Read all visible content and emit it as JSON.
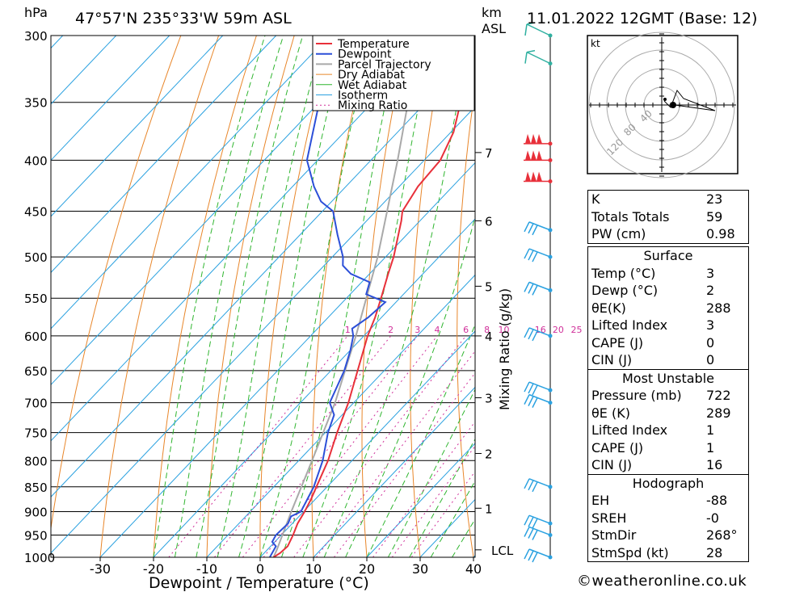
{
  "header": {
    "hpa_unit": "hPa",
    "location": "47°57'N  235°33'W  59m  ASL",
    "km_unit": "km",
    "asl_label": "ASL",
    "datetime": "11.01.2022  12GMT  (Base: 12)"
  },
  "chart_data": {
    "type": "skew-t",
    "xlabel": "Dewpoint / Temperature (°C)",
    "ylabel_left": "hPa",
    "mixing_ratio_axis_label": "Mixing Ratio (g/kg)",
    "x_ticks": [
      "-30",
      "-20",
      "-10",
      "0",
      "10",
      "20",
      "30",
      "40"
    ],
    "x_tick_values": [
      -30,
      -20,
      -10,
      0,
      10,
      20,
      30,
      40
    ],
    "pressure_ticks": [
      "300",
      "350",
      "400",
      "450",
      "500",
      "550",
      "600",
      "650",
      "700",
      "750",
      "800",
      "850",
      "900",
      "950",
      "1000"
    ],
    "pressure_values": [
      300,
      350,
      400,
      450,
      500,
      550,
      600,
      650,
      700,
      750,
      800,
      850,
      900,
      950,
      1000
    ],
    "pressure_range": [
      300,
      1000
    ],
    "km_ticks": [
      "7",
      "6",
      "5",
      "4",
      "3",
      "2",
      "1"
    ],
    "km_tick_pressures": [
      393,
      460,
      535,
      600,
      692,
      787,
      893
    ],
    "lcl_label": "LCL",
    "lcl_pressure": 983,
    "mixing_ratio_labels": [
      "1",
      "2",
      "3",
      "4",
      "6",
      "8",
      "10",
      "16",
      "20",
      "25"
    ],
    "legend": [
      "Temperature",
      "Dewpoint",
      "Parcel Trajectory",
      "Dry Adiabat",
      "Wet Adiabat",
      "Isotherm",
      "Mixing Ratio"
    ],
    "legend_position": "top-right",
    "colors": {
      "temperature": "#e8303a",
      "dewpoint": "#2c4fd8",
      "parcel": "#a9a9a9",
      "dry_adiabat": "#e8862a",
      "wet_adiabat": "#2fb52f",
      "isotherm": "#2aa1e0",
      "mixing_ratio": "#d0309a"
    },
    "temperature_profile": [
      {
        "p": 1000,
        "t": 2.5
      },
      {
        "p": 990,
        "t": 3.0
      },
      {
        "p": 975,
        "t": 3.2
      },
      {
        "p": 950,
        "t": 2.2
      },
      {
        "p": 925,
        "t": 1.0
      },
      {
        "p": 900,
        "t": 0.2
      },
      {
        "p": 875,
        "t": -0.8
      },
      {
        "p": 850,
        "t": -2.0
      },
      {
        "p": 800,
        "t": -4.5
      },
      {
        "p": 750,
        "t": -7.8
      },
      {
        "p": 700,
        "t": -11.0
      },
      {
        "p": 650,
        "t": -15.0
      },
      {
        "p": 600,
        "t": -19.3
      },
      {
        "p": 575,
        "t": -21.2
      },
      {
        "p": 550,
        "t": -23.5
      },
      {
        "p": 520,
        "t": -26.5
      },
      {
        "p": 500,
        "t": -28.5
      },
      {
        "p": 460,
        "t": -33.5
      },
      {
        "p": 450,
        "t": -35.0
      },
      {
        "p": 425,
        "t": -36.5
      },
      {
        "p": 400,
        "t": -37.0
      },
      {
        "p": 375,
        "t": -39.5
      },
      {
        "p": 350,
        "t": -43.5
      },
      {
        "p": 325,
        "t": -47.5
      },
      {
        "p": 300,
        "t": -51.5
      }
    ],
    "dewpoint_profile": [
      {
        "p": 1000,
        "t": 1.8
      },
      {
        "p": 975,
        "t": 1.0
      },
      {
        "p": 965,
        "t": -0.5
      },
      {
        "p": 950,
        "t": -1.0
      },
      {
        "p": 925,
        "t": -0.8
      },
      {
        "p": 910,
        "t": -1.5
      },
      {
        "p": 900,
        "t": -0.5
      },
      {
        "p": 850,
        "t": -2.5
      },
      {
        "p": 800,
        "t": -5.5
      },
      {
        "p": 750,
        "t": -9.5
      },
      {
        "p": 720,
        "t": -11.5
      },
      {
        "p": 700,
        "t": -14.5
      },
      {
        "p": 650,
        "t": -17.5
      },
      {
        "p": 620,
        "t": -20.0
      },
      {
        "p": 600,
        "t": -22.0
      },
      {
        "p": 590,
        "t": -23.5
      },
      {
        "p": 575,
        "t": -22.5
      },
      {
        "p": 555,
        "t": -22.0
      },
      {
        "p": 545,
        "t": -27.0
      },
      {
        "p": 530,
        "t": -28.5
      },
      {
        "p": 520,
        "t": -33.5
      },
      {
        "p": 510,
        "t": -36.5
      },
      {
        "p": 500,
        "t": -38.0
      },
      {
        "p": 475,
        "t": -43.0
      },
      {
        "p": 450,
        "t": -48.0
      },
      {
        "p": 440,
        "t": -52.0
      },
      {
        "p": 425,
        "t": -56.0
      },
      {
        "p": 400,
        "t": -62.0
      },
      {
        "p": 350,
        "t": -70.0
      },
      {
        "p": 300,
        "t": -77.0
      }
    ],
    "parcel_profile": [
      {
        "p": 1000,
        "t": 2.5
      },
      {
        "p": 983,
        "t": 1.8
      },
      {
        "p": 900,
        "t": -2.3
      },
      {
        "p": 800,
        "t": -7.5
      },
      {
        "p": 700,
        "t": -13.5
      },
      {
        "p": 600,
        "t": -21.5
      },
      {
        "p": 500,
        "t": -31.5
      },
      {
        "p": 400,
        "t": -45.0
      },
      {
        "p": 300,
        "t": -63.0
      }
    ],
    "wind_profile": [
      {
        "p": 300,
        "spd": "~25",
        "dir": "WSW"
      },
      {
        "p": 320,
        "spd": "~25",
        "dir": "WSW"
      },
      {
        "p": 385,
        "spd": "~60",
        "dir": "W"
      },
      {
        "p": 400,
        "spd": "~60",
        "dir": "W"
      },
      {
        "p": 420,
        "spd": "~60",
        "dir": "W"
      },
      {
        "p": 470,
        "spd": "~40",
        "dir": "WSW"
      },
      {
        "p": 500,
        "spd": "~40",
        "dir": "WSW"
      },
      {
        "p": 540,
        "spd": "~40",
        "dir": "WSW"
      },
      {
        "p": 600,
        "spd": "~40",
        "dir": "WSW"
      },
      {
        "p": 680,
        "spd": "~35",
        "dir": "WSW"
      },
      {
        "p": 700,
        "spd": "~35",
        "dir": "WSW"
      },
      {
        "p": 850,
        "spd": "~30",
        "dir": "W"
      },
      {
        "p": 925,
        "spd": "~30",
        "dir": "W"
      },
      {
        "p": 950,
        "spd": "~30",
        "dir": "W"
      },
      {
        "p": 1000,
        "spd": "~10",
        "dir": "SW"
      }
    ],
    "hodograph": {
      "unit_label": "kt",
      "ring_labels": [
        "40",
        "80",
        "120"
      ]
    }
  },
  "stats": {
    "basic": [
      {
        "label": "K",
        "value": "23"
      },
      {
        "label": "Totals Totals",
        "value": "59"
      },
      {
        "label": "PW (cm)",
        "value": "0.98"
      }
    ],
    "surface": {
      "title": "Surface",
      "rows": [
        {
          "label": "Temp (°C)",
          "value": "3"
        },
        {
          "label": "Dewp (°C)",
          "value": "2"
        },
        {
          "label": "θE(K)",
          "value": "288"
        },
        {
          "label": "Lifted Index",
          "value": "3"
        },
        {
          "label": "CAPE (J)",
          "value": "0"
        },
        {
          "label": "CIN (J)",
          "value": "0"
        }
      ]
    },
    "most_unstable": {
      "title": "Most Unstable",
      "rows": [
        {
          "label": "Pressure (mb)",
          "value": "722"
        },
        {
          "label": "θE (K)",
          "value": "289"
        },
        {
          "label": "Lifted Index",
          "value": "1"
        },
        {
          "label": "CAPE (J)",
          "value": "1"
        },
        {
          "label": "CIN (J)",
          "value": "16"
        }
      ]
    },
    "hodograph": {
      "title": "Hodograph",
      "rows": [
        {
          "label": "EH",
          "value": "-88"
        },
        {
          "label": "SREH",
          "value": "-0"
        },
        {
          "label": "StmDir",
          "value": "268°"
        },
        {
          "label": "StmSpd (kt)",
          "value": "28"
        }
      ]
    }
  },
  "footer": {
    "credit": "©weatheronline.co.uk"
  }
}
